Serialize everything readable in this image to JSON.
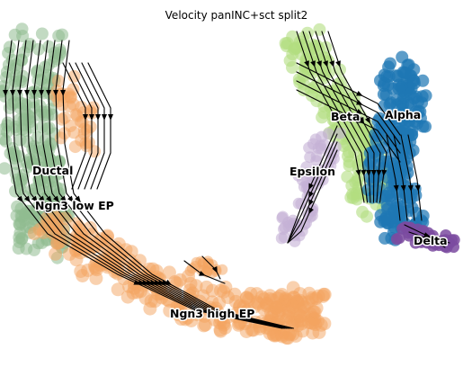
{
  "chart_data": {
    "type": "scatter",
    "title": "Velocity panINC+sct split2",
    "xlabel": "",
    "ylabel": "",
    "grid": false,
    "legend": "on data",
    "colors": {
      "Ductal": "#8fbc8f",
      "Ngn3 low EP": "#8fbc8f",
      "Ngn3 high EP": "#f4a460",
      "Beta": "#b3de81",
      "Alpha": "#1f77b4",
      "Epsilon": "#c5b0d5",
      "Delta": "#7b4ba0"
    },
    "clusters": [
      {
        "name": "Ductal",
        "label": "Ductal"
      },
      {
        "name": "Ngn3 low EP",
        "label": "Ngn3 low EP"
      },
      {
        "name": "Ngn3 high EP",
        "label": "Ngn3 high EP"
      },
      {
        "name": "Beta",
        "label": "Beta"
      },
      {
        "name": "Alpha",
        "label": "Alpha"
      },
      {
        "name": "Epsilon",
        "label": "Epsilon"
      },
      {
        "name": "Delta",
        "label": "Delta"
      }
    ]
  }
}
